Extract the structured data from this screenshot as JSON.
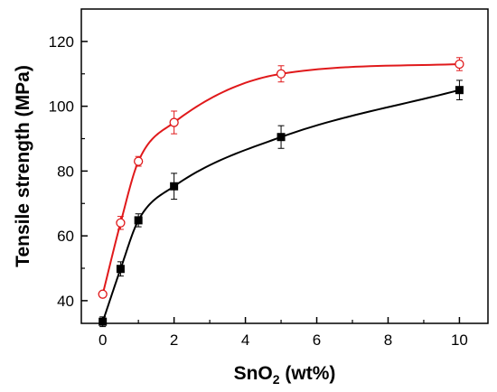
{
  "chart_data": {
    "type": "scatter",
    "xlabel": "SnO",
    "xlabel_sub": "2",
    "xlabel_suffix": " (wt%)",
    "ylabel": "Tensile strength (MPa)",
    "xlim": [
      -0.6,
      10.8
    ],
    "ylim": [
      33,
      130
    ],
    "xticks": [
      0,
      2,
      4,
      6,
      8,
      10
    ],
    "yticks": [
      40,
      60,
      80,
      100,
      120
    ],
    "grid": false,
    "series": [
      {
        "marker": "open-circle",
        "color": "#e0191b",
        "x": [
          0,
          0.5,
          1,
          2,
          5,
          10
        ],
        "y": [
          42,
          64,
          83,
          95,
          110,
          113
        ],
        "err": [
          0.8,
          2,
          1.5,
          3.5,
          2.5,
          2
        ]
      },
      {
        "marker": "filled-square",
        "color": "#000000",
        "x": [
          0,
          0.5,
          1,
          2,
          5,
          10
        ],
        "y": [
          33.5,
          49.8,
          64.8,
          75.3,
          90.5,
          105
        ],
        "err": [
          1.5,
          2.2,
          2,
          4,
          3.5,
          3
        ]
      }
    ]
  }
}
